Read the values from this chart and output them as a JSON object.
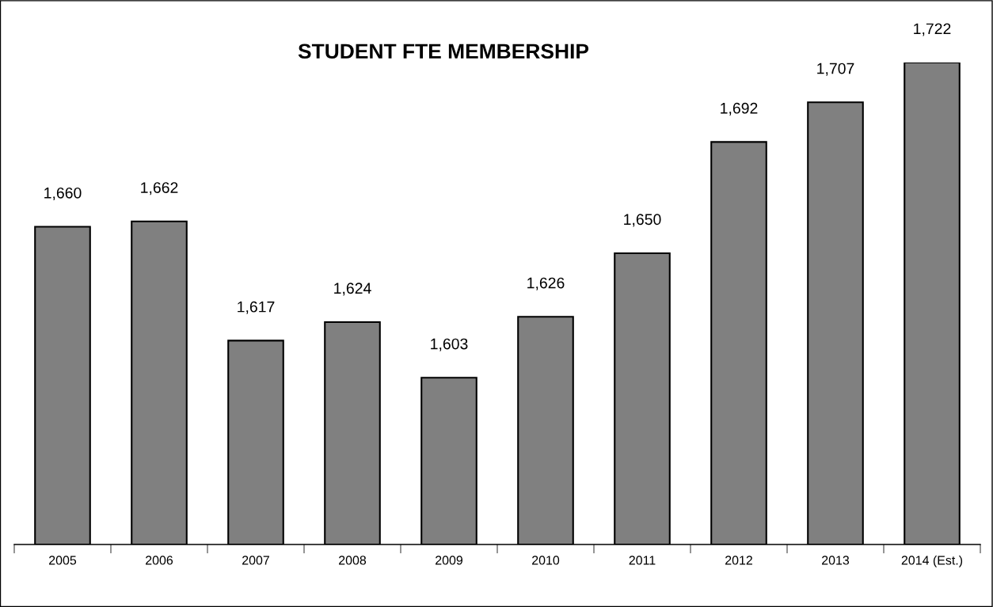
{
  "chart_data": {
    "type": "bar",
    "title": "STUDENT FTE MEMBERSHIP",
    "categories": [
      "2005",
      "2006",
      "2007",
      "2008",
      "2009",
      "2010",
      "2011",
      "2012",
      "2013",
      "2014 (Est.)"
    ],
    "values": [
      1660,
      1662,
      1617,
      1624,
      1603,
      1626,
      1650,
      1692,
      1707,
      1722
    ],
    "color": "#808080",
    "value_labels": [
      "1,660",
      "1,662",
      "1,617",
      "1,624",
      "1,603",
      "1,626",
      "1,650",
      "1,692",
      "1,707",
      "1,722"
    ],
    "ylim": [
      1540,
      1722
    ],
    "tick_labels": "x",
    "grid": false
  }
}
